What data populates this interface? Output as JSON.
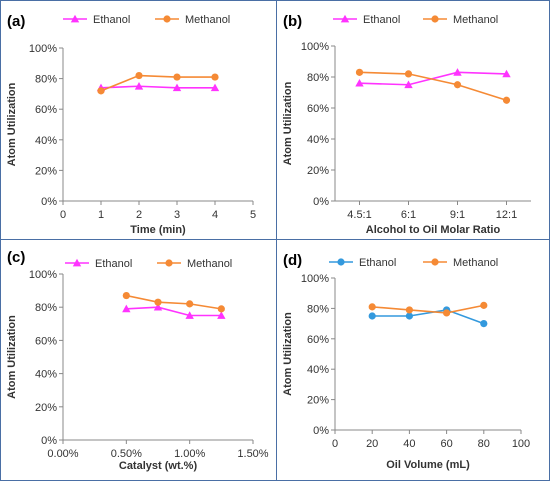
{
  "colors": {
    "ethanol_pink": "#ff33ff",
    "ethanol_blue": "#3399dd",
    "methanol": "#f58a35",
    "axis": "#888888",
    "border": "#4a6fa5"
  },
  "chart_data": [
    {
      "panel": "(a)",
      "type": "line",
      "xlabel": "Time (min)",
      "ylabel": "Atom Utilization",
      "x_ticks": [
        "0",
        "1",
        "2",
        "3",
        "4",
        "5"
      ],
      "x_tick_values": [
        0,
        1,
        2,
        3,
        4,
        5
      ],
      "xlim": [
        0,
        5
      ],
      "y_ticks": [
        "0%",
        "20%",
        "40%",
        "60%",
        "80%",
        "100%"
      ],
      "ylim": [
        0,
        100
      ],
      "series": [
        {
          "name": "Ethanol",
          "marker": "triangle",
          "color": "#ff33ff",
          "x": [
            1,
            2,
            3,
            4
          ],
          "y": [
            74,
            75,
            74,
            74
          ]
        },
        {
          "name": "Methanol",
          "marker": "circle",
          "color": "#f58a35",
          "x": [
            1,
            2,
            3,
            4
          ],
          "y": [
            72,
            82,
            81,
            81
          ]
        }
      ]
    },
    {
      "panel": "(b)",
      "type": "line",
      "xlabel": "Alcohol to Oil Molar Ratio",
      "ylabel": "Atom Utilization",
      "x_ticks": [
        "4.5:1",
        "6:1",
        "9:1",
        "12:1"
      ],
      "x_tick_values": [
        0,
        1,
        2,
        3
      ],
      "xlim": [
        -0.5,
        3.5
      ],
      "y_ticks": [
        "0%",
        "20%",
        "40%",
        "60%",
        "80%",
        "100%"
      ],
      "ylim": [
        0,
        100
      ],
      "series": [
        {
          "name": "Ethanol",
          "marker": "triangle",
          "color": "#ff33ff",
          "x": [
            0,
            1,
            2,
            3
          ],
          "y": [
            76,
            75,
            83,
            82
          ]
        },
        {
          "name": "Methanol",
          "marker": "circle",
          "color": "#f58a35",
          "x": [
            0,
            1,
            2,
            3
          ],
          "y": [
            83,
            82,
            75,
            65
          ]
        }
      ]
    },
    {
      "panel": "(c)",
      "type": "line",
      "xlabel": "Catalyst (wt.%)",
      "ylabel": "Atom Utilization",
      "x_ticks": [
        "0.00%",
        "0.50%",
        "1.00%",
        "1.50%"
      ],
      "x_tick_values": [
        0,
        0.5,
        1.0,
        1.5
      ],
      "xlim": [
        0,
        1.5
      ],
      "y_ticks": [
        "0%",
        "20%",
        "40%",
        "60%",
        "80%",
        "100%"
      ],
      "ylim": [
        0,
        100
      ],
      "series": [
        {
          "name": "Ethanol",
          "marker": "triangle",
          "color": "#ff33ff",
          "x": [
            0.5,
            0.75,
            1.0,
            1.25
          ],
          "y": [
            79,
            80,
            75,
            75
          ]
        },
        {
          "name": "Methanol",
          "marker": "circle",
          "color": "#f58a35",
          "x": [
            0.5,
            0.75,
            1.0,
            1.25
          ],
          "y": [
            87,
            83,
            82,
            79
          ]
        }
      ]
    },
    {
      "panel": "(d)",
      "type": "line",
      "xlabel": "Oil Volume (mL)",
      "ylabel": "Atom Utilization",
      "x_ticks": [
        "0",
        "20",
        "40",
        "60",
        "80",
        "100"
      ],
      "x_tick_values": [
        0,
        20,
        40,
        60,
        80,
        100
      ],
      "xlim": [
        0,
        100
      ],
      "y_ticks": [
        "0%",
        "20%",
        "40%",
        "60%",
        "80%",
        "100%"
      ],
      "ylim": [
        0,
        100
      ],
      "series": [
        {
          "name": "Ethanol",
          "marker": "circle",
          "color": "#3399dd",
          "x": [
            20,
            40,
            60,
            80
          ],
          "y": [
            75,
            75,
            79,
            70
          ]
        },
        {
          "name": "Methanol",
          "marker": "circle",
          "color": "#f58a35",
          "x": [
            20,
            40,
            60,
            80
          ],
          "y": [
            81,
            79,
            77,
            82
          ]
        }
      ]
    }
  ]
}
